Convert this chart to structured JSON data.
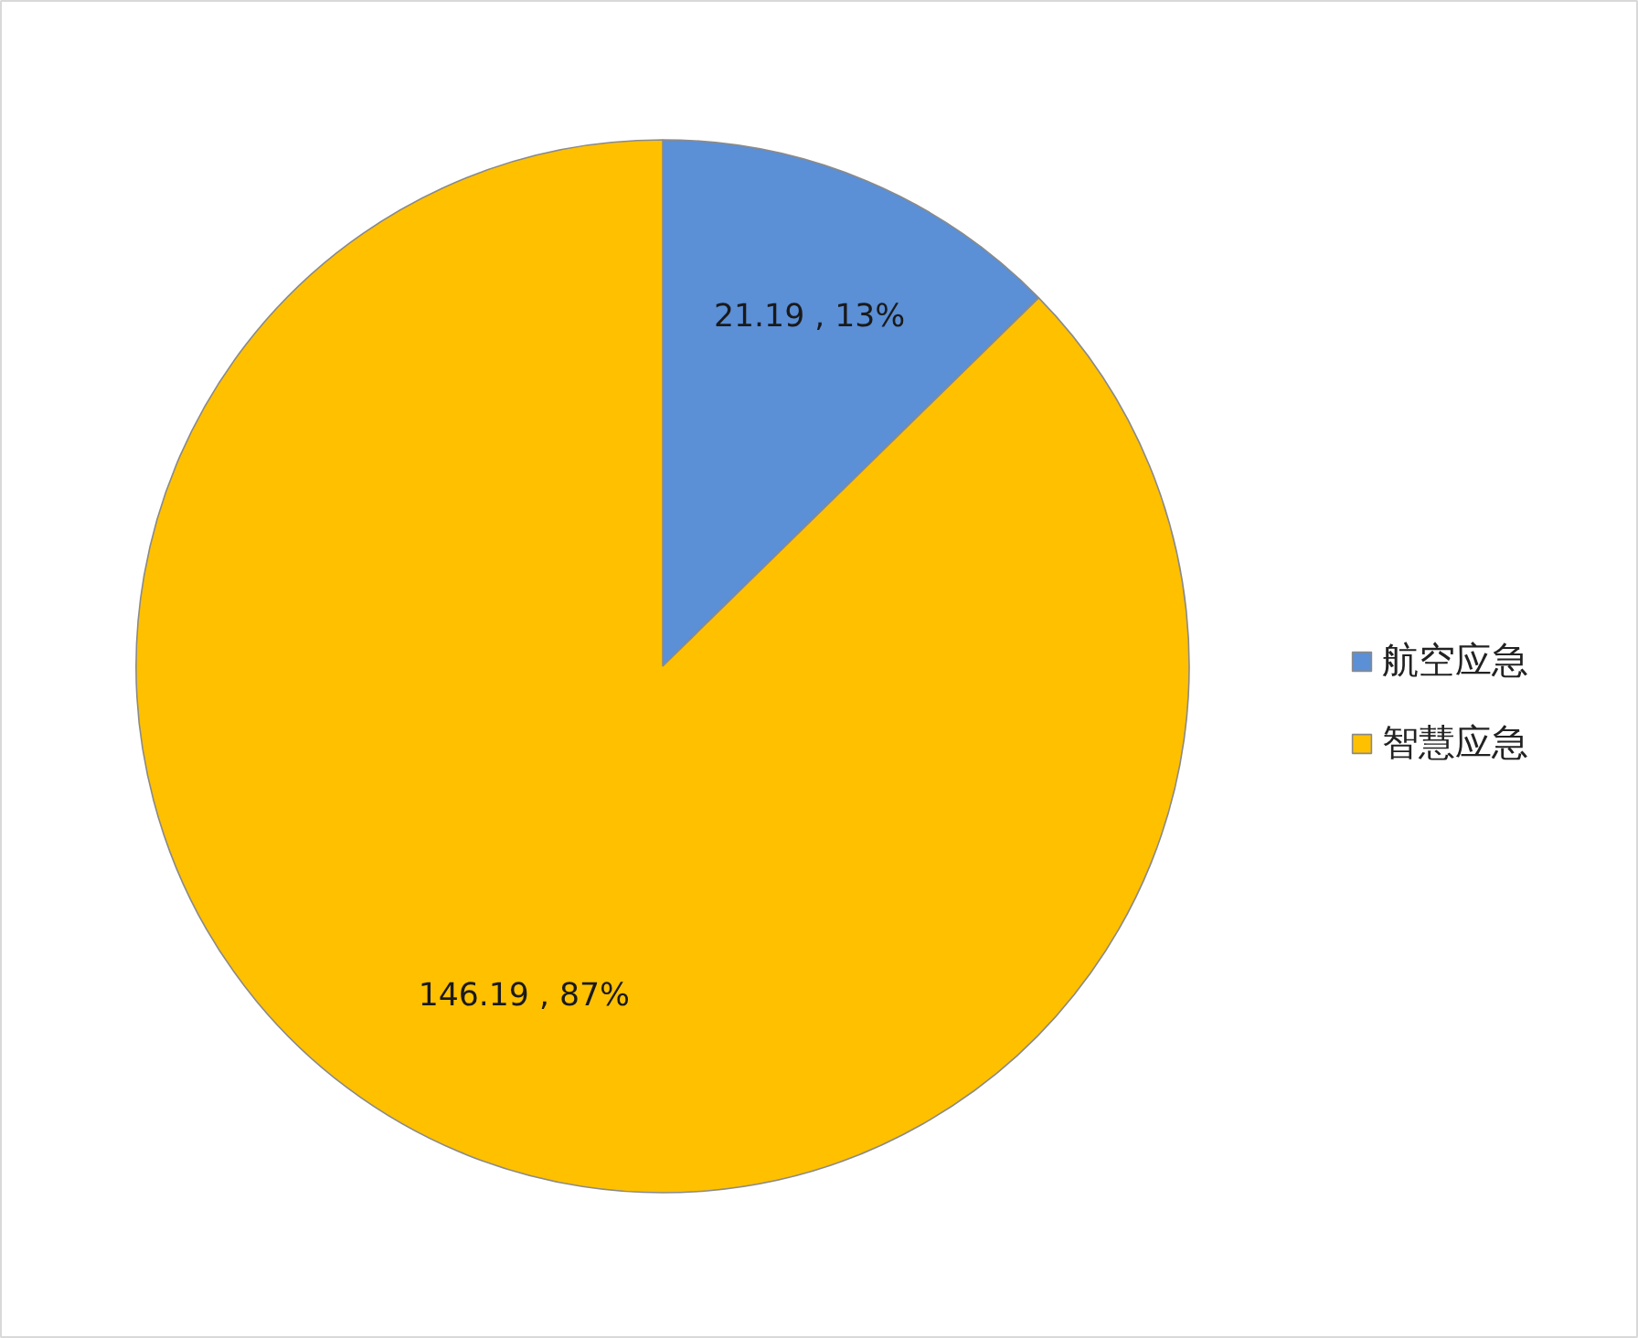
{
  "chart_data": {
    "type": "pie",
    "categories": [
      "航空应急",
      "智慧应急"
    ],
    "values": [
      21.19,
      146.19
    ],
    "colors": [
      "#5b8fd6",
      "#ffc000"
    ],
    "value_labels": [
      "21.19 , 13%",
      "146.19 , 87%"
    ],
    "legend": "right"
  }
}
